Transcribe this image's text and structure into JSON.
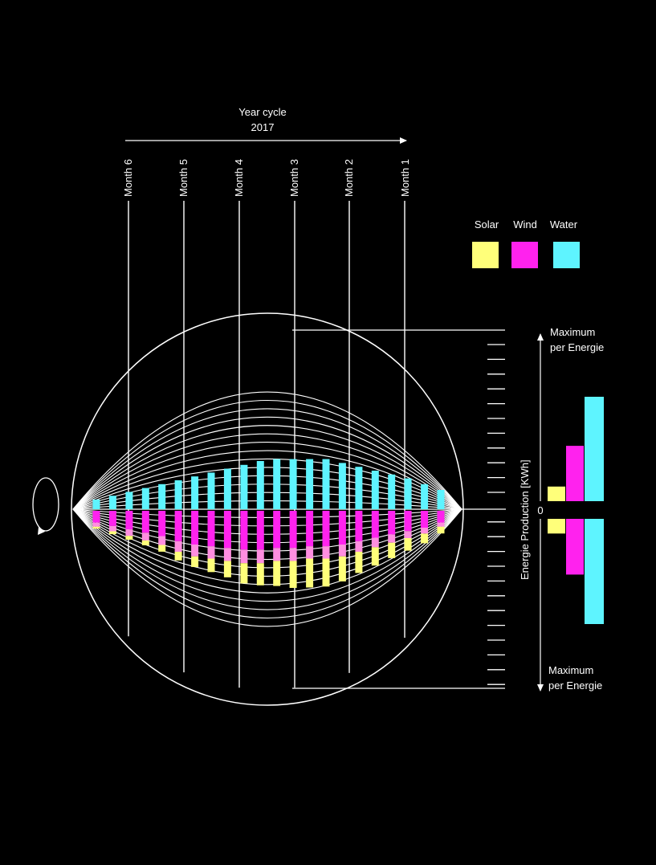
{
  "header": {
    "title_line1": "Year cycle",
    "title_line2": "2017"
  },
  "months": [
    "Month 6",
    "Month 5",
    "Month 4",
    "Month 3",
    "Month 2",
    "Month 1"
  ],
  "legend": {
    "items": [
      {
        "label": "Solar",
        "color": "#ffff7a"
      },
      {
        "label": "Wind",
        "color": "#ff22ee"
      },
      {
        "label": "Water",
        "color": "#5ef4ff"
      }
    ]
  },
  "axis": {
    "label": "Energie Production [KWh]",
    "zero_label": "0",
    "top_label_line1": "Maximum",
    "top_label_line2": "per Energie",
    "bottom_label_line1": "Maximum",
    "bottom_label_line2": "per Energie"
  },
  "colors": {
    "solar": "#ffff7a",
    "wind": "#ff22ee",
    "wind_light": "#ff8ee0",
    "water": "#5ef4ff",
    "lines": "#ffffff",
    "background": "#000000"
  },
  "icons": {
    "rotation": "rotate-arrow-icon"
  },
  "chart_data": {
    "type": "bar",
    "series": [
      {
        "name": "Water",
        "values": [
          0.1,
          0.14,
          0.18,
          0.22,
          0.26,
          0.3,
          0.34,
          0.38,
          0.42,
          0.46,
          0.5,
          0.52,
          0.52,
          0.52,
          0.52,
          0.48,
          0.44,
          0.4,
          0.36,
          0.32,
          0.26,
          0.2
        ]
      },
      {
        "name": "Wind",
        "values": [
          0.14,
          0.18,
          0.22,
          0.26,
          0.3,
          0.36,
          0.4,
          0.42,
          0.44,
          0.46,
          0.46,
          0.44,
          0.44,
          0.42,
          0.42,
          0.4,
          0.36,
          0.32,
          0.28,
          0.24,
          0.2,
          0.14
        ]
      },
      {
        "name": "Solar",
        "values": [
          0.04,
          0.06,
          0.08,
          0.1,
          0.14,
          0.18,
          0.22,
          0.28,
          0.34,
          0.42,
          0.46,
          0.52,
          0.56,
          0.6,
          0.58,
          0.52,
          0.44,
          0.38,
          0.32,
          0.26,
          0.2,
          0.14
        ]
      }
    ],
    "legend_bars": {
      "solar": 0.14,
      "wind": 0.53,
      "water": 1.0
    }
  }
}
